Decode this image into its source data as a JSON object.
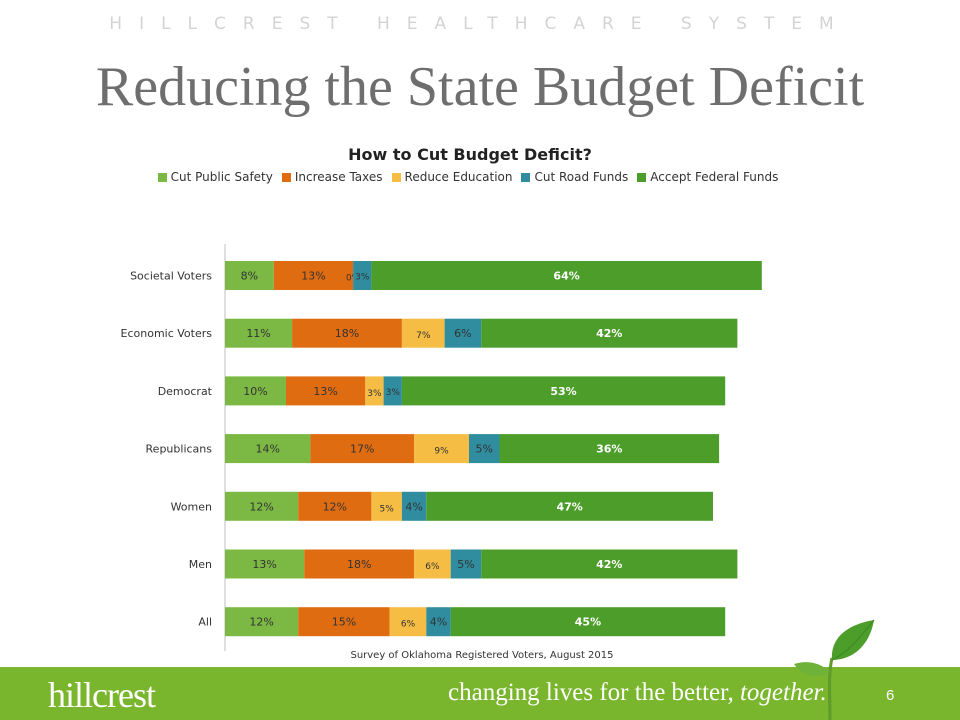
{
  "header": {
    "organization": "HILLCREST HEALTHCARE SYSTEM",
    "title": "Reducing the State Budget Deficit"
  },
  "chart_data": {
    "type": "bar",
    "orientation": "horizontal",
    "stacked": true,
    "title": "How to Cut Budget Deficit?",
    "legend_position": "top",
    "categories": [
      "Societal Voters",
      "Economic Voters",
      "Democrat",
      "Republicans",
      "Women",
      "Men",
      "All"
    ],
    "series": [
      {
        "name": "Cut Public Safety",
        "color": "#7cb944",
        "values": [
          8,
          11,
          10,
          14,
          12,
          13,
          12
        ],
        "labels": [
          "8%",
          "11%",
          "10%",
          "14%",
          "12%",
          "13%",
          "12%"
        ]
      },
      {
        "name": "Increase Taxes",
        "color": "#e06c12",
        "values": [
          13,
          18,
          13,
          17,
          12,
          18,
          15
        ],
        "labels": [
          "13%",
          "18%",
          "13%",
          "17%",
          "12%",
          "18%",
          "15%"
        ]
      },
      {
        "name": "Reduce Education",
        "color": "#f6bd45",
        "values": [
          0,
          7,
          3,
          9,
          5,
          6,
          6
        ],
        "labels": [
          "0%",
          "7%",
          "3%",
          "9%",
          "5%",
          "6%",
          "6%"
        ]
      },
      {
        "name": "Cut Road Funds",
        "color": "#2f8d9f",
        "values": [
          3,
          6,
          3,
          5,
          4,
          5,
          4
        ],
        "labels": [
          "3%",
          "6%",
          "3%",
          "5%",
          "4%",
          "5%",
          "4%"
        ]
      },
      {
        "name": "Accept Federal Funds",
        "color": "#4d9d2b",
        "values": [
          64,
          42,
          53,
          36,
          47,
          42,
          45
        ],
        "labels": [
          "64%",
          "42%",
          "53%",
          "36%",
          "47%",
          "42%",
          "45%"
        ]
      }
    ],
    "source_note": "Survey of Oklahoma Registered Voters, August 2015"
  },
  "footer": {
    "logo_text": "hillcrest",
    "tagline_main": "changing lives for the better, ",
    "tagline_emphasis": "together.",
    "page_number": "6",
    "band_color": "#79b62d"
  }
}
